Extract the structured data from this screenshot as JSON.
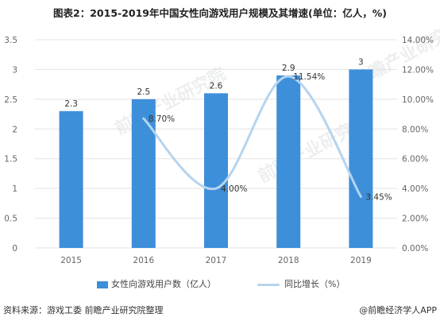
{
  "title": "图表2：2015-2019年中国女性向游戏用户规模及其增速(单位：亿人，%)",
  "source": "资料来源：游戏工委 前瞻产业研究院整理",
  "brand": "@前瞻经济学人APP",
  "watermark": "前瞻产业研究院",
  "colors": {
    "bar": "#3d8fd9",
    "line": "#b5d4ee",
    "grid": "#e3e3e3"
  },
  "chart_data": {
    "type": "bar",
    "categories": [
      "2015",
      "2016",
      "2017",
      "2018",
      "2019"
    ],
    "series": [
      {
        "name": "女性向游戏用户数（亿人）",
        "type": "bar",
        "axis": "left",
        "values": [
          2.3,
          2.5,
          2.6,
          2.9,
          3
        ],
        "labels": [
          "2.3",
          "2.5",
          "2.6",
          "2.9",
          "3"
        ]
      },
      {
        "name": "同比增长（%）",
        "type": "line",
        "axis": "right",
        "values": [
          null,
          8.7,
          4.0,
          11.54,
          3.45
        ],
        "labels": [
          "",
          "8.70%",
          "4.00%",
          "11.54%",
          "3.45%"
        ]
      }
    ],
    "y_left": {
      "min": 0,
      "max": 3.5,
      "ticks": [
        "0",
        "0.5",
        "1",
        "1.5",
        "2",
        "2.5",
        "3",
        "3.5"
      ]
    },
    "y_right": {
      "min": 0,
      "max": 14,
      "ticks": [
        "0.00%",
        "2.00%",
        "4.00%",
        "6.00%",
        "8.00%",
        "10.00%",
        "12.00%",
        "14.00%"
      ]
    },
    "grid": true,
    "legend": "bottom"
  }
}
